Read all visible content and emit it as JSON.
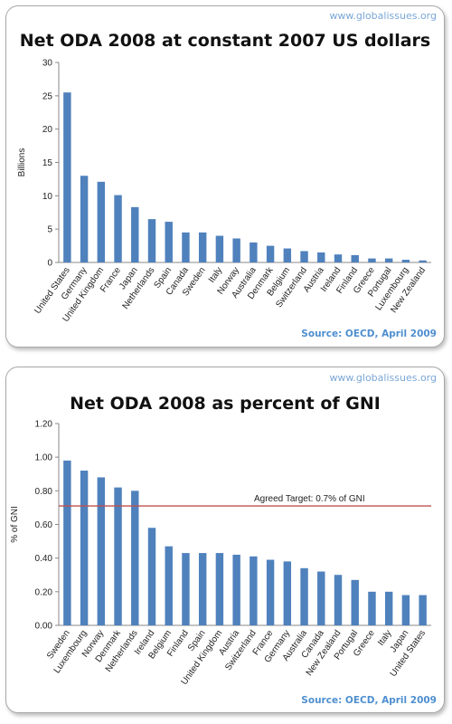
{
  "watermark": "www.globalissues.org",
  "chart_data": [
    {
      "type": "bar",
      "title": "Net ODA 2008 at constant 2007 US dollars",
      "ylabel": "Billions",
      "xlabel": "",
      "ylim": [
        0,
        30
      ],
      "yticks": [
        "0",
        "5",
        "10",
        "15",
        "20",
        "25",
        "30"
      ],
      "categories": [
        "United States",
        "Germany",
        "United Kingdom",
        "France",
        "Japan",
        "Netherlands",
        "Spain",
        "Canada",
        "Sweden",
        "Italy",
        "Norway",
        "Australia",
        "Denmark",
        "Belgium",
        "Switzerland",
        "Austria",
        "Ireland",
        "Finland",
        "Greece",
        "Portugal",
        "Luxembourg",
        "New Zealand"
      ],
      "values": [
        25.5,
        13.0,
        12.1,
        10.1,
        8.3,
        6.5,
        6.1,
        4.5,
        4.5,
        4.0,
        3.6,
        3.0,
        2.5,
        2.1,
        1.7,
        1.5,
        1.2,
        1.1,
        0.6,
        0.6,
        0.4,
        0.3
      ],
      "source": "Source: OECD, April 2009",
      "bar_color": "#4f81bd",
      "grid": false
    },
    {
      "type": "bar",
      "title": "Net ODA 2008 as percent of GNI",
      "ylabel": "% of GNI",
      "xlabel": "",
      "ylim": [
        0,
        1.2
      ],
      "yticks": [
        "0.00",
        "0.20",
        "0.40",
        "0.60",
        "0.80",
        "1.00",
        "1.20"
      ],
      "categories": [
        "Sweden",
        "Luxembourg",
        "Norway",
        "Denmark",
        "Netherlands",
        "Ireland",
        "Belgium",
        "Finland",
        "Spain",
        "United Kingdom",
        "Austria",
        "Switzerland",
        "France",
        "Germany",
        "Australia",
        "Canada",
        "New Zealand",
        "Portugal",
        "Greece",
        "Italy",
        "Japan",
        "United States"
      ],
      "values": [
        0.98,
        0.92,
        0.88,
        0.82,
        0.8,
        0.58,
        0.47,
        0.43,
        0.43,
        0.43,
        0.42,
        0.41,
        0.39,
        0.38,
        0.34,
        0.32,
        0.3,
        0.27,
        0.2,
        0.2,
        0.18,
        0.18
      ],
      "target": {
        "value": 0.71,
        "label": "Agreed Target: 0.7% of GNI",
        "color": "#c0504d"
      },
      "source": "Source: OECD, April 2009",
      "bar_color": "#4f81bd",
      "grid": false
    }
  ]
}
